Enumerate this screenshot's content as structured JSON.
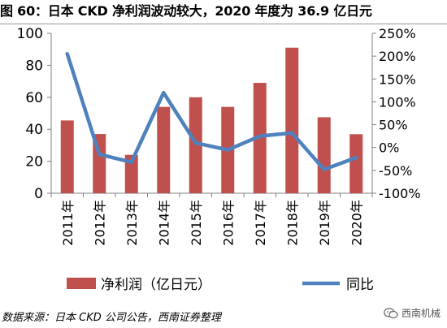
{
  "header": {
    "title": "图 60：日本 CKD 净利润波动较大，2020 年度为 36.9 亿日元"
  },
  "footer": {
    "source": "数据来源：日本 CKD 公司公告，西南证券整理",
    "watermark": "西南机械",
    "watermark_icon": "wechat-icon"
  },
  "chart_data": {
    "type": "bar",
    "title": "",
    "categories": [
      "2011年",
      "2012年",
      "2013年",
      "2014年",
      "2015年",
      "2016年",
      "2017年",
      "2018年",
      "2019年",
      "2020年"
    ],
    "series": [
      {
        "name": "净利润（亿日元）",
        "type": "bar",
        "axis": "left",
        "color": "#C0504D",
        "values": [
          45.5,
          37,
          24,
          54,
          60,
          54,
          69,
          91,
          47.5,
          36.9
        ]
      },
      {
        "name": "同比",
        "type": "line",
        "axis": "right",
        "color": "#4F81BD",
        "values": [
          205,
          -15,
          -32,
          120,
          10,
          -5,
          25,
          32,
          -48,
          -22
        ]
      }
    ],
    "left_axis": {
      "min": 0,
      "max": 100,
      "ticks": [
        0,
        20,
        40,
        60,
        80,
        100
      ]
    },
    "right_axis": {
      "min": -100,
      "max": 250,
      "ticks": [
        -100,
        -50,
        0,
        50,
        100,
        150,
        200,
        250
      ],
      "tick_labels": [
        "-100%",
        "-50%",
        "0%",
        "50%",
        "100%",
        "150%",
        "200%",
        "250%"
      ]
    },
    "legend": {
      "placement": "bottom"
    },
    "grid": false
  }
}
